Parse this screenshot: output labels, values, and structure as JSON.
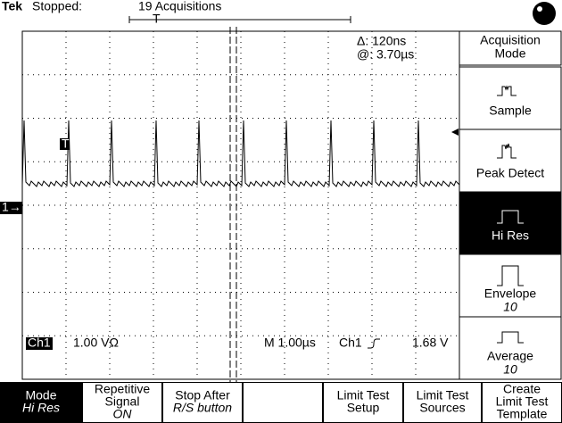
{
  "header": {
    "brand": "Tek",
    "status": "Stopped:",
    "acquisitions": "19 Acquisitions"
  },
  "readout": {
    "delta": "Δ: 120ns",
    "at": "@: 3.70µs",
    "trigger_marker": "T",
    "channel_marker": "1→",
    "channel": "Ch1",
    "scale": "1.00 VΩ",
    "timebase": "M 1.00µs",
    "trigger_source": "Ch1",
    "trigger_level": "1.68 V"
  },
  "side_menu": {
    "title": [
      "Acquisition",
      "Mode"
    ],
    "items": [
      {
        "label": "Sample"
      },
      {
        "label": "Peak Detect"
      },
      {
        "label": "Hi Res",
        "selected": true
      },
      {
        "label": "Envelope",
        "value": "10"
      },
      {
        "label": "Average",
        "value": "10"
      }
    ]
  },
  "bottom_menu": [
    {
      "lines": [
        "Mode"
      ],
      "value": "Hi Res",
      "selected": true
    },
    {
      "lines": [
        "Repetitive",
        "Signal"
      ],
      "value": "ON"
    },
    {
      "lines": [
        "Stop After"
      ],
      "value": "R/S button"
    },
    null,
    {
      "lines": [
        "Limit Test",
        "Setup"
      ]
    },
    {
      "lines": [
        "Limit Test",
        "Sources"
      ]
    },
    {
      "lines": [
        "Create",
        "Limit Test",
        "Template"
      ]
    }
  ]
}
